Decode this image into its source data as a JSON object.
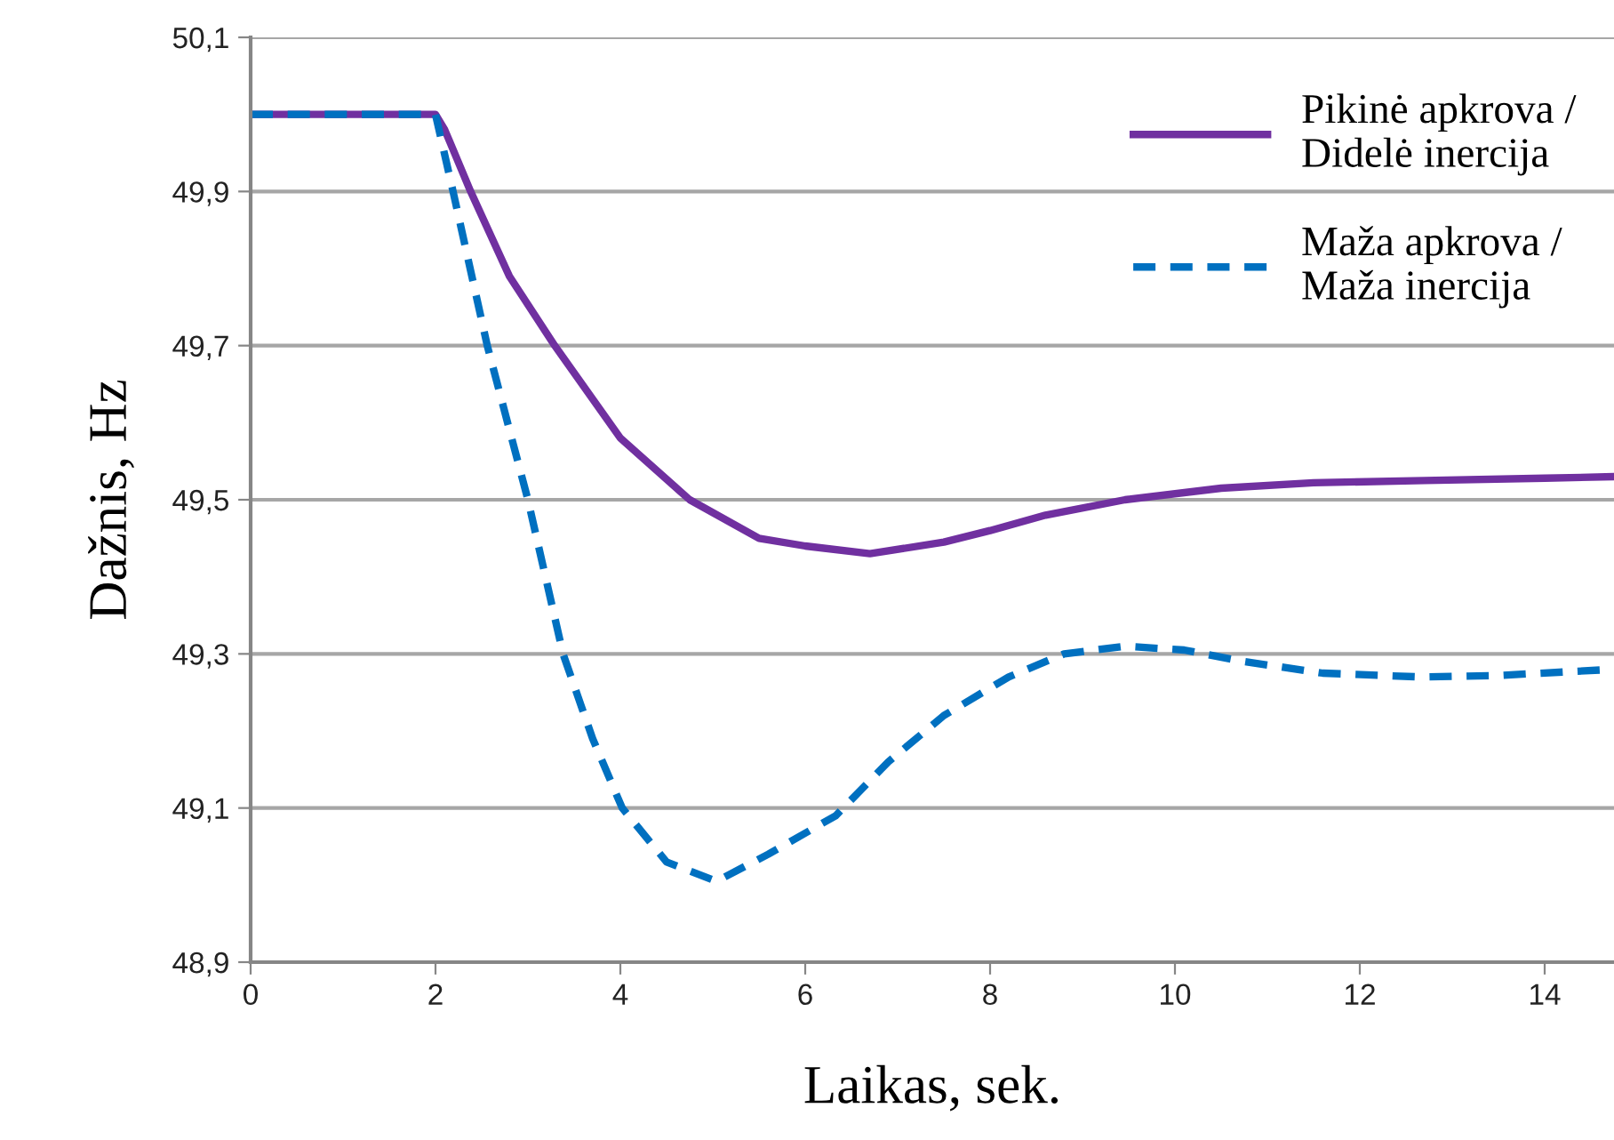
{
  "chart_data": {
    "type": "line",
    "xlabel": "Laikas, sek.",
    "ylabel": "Dažnis, Hz",
    "xlim": [
      0,
      14.75
    ],
    "xticks": [
      0,
      2,
      4,
      6,
      8,
      10,
      12,
      14
    ],
    "ylim": [
      48.9,
      50.1
    ],
    "yticks": [
      {
        "value": 48.9,
        "label": "48,9"
      },
      {
        "value": 49.1,
        "label": "49,1"
      },
      {
        "value": 49.3,
        "label": "49,3"
      },
      {
        "value": 49.5,
        "label": "49,5"
      },
      {
        "value": 49.7,
        "label": "49,7"
      },
      {
        "value": 49.9,
        "label": "49,9"
      },
      {
        "value": 50.1,
        "label": "50,1"
      }
    ],
    "grid": "y",
    "legend": "top right",
    "series": [
      {
        "name": "Pikinė apkrova /\nDidelė inercija",
        "color": "#7030a0",
        "line_style": "solid",
        "x": [
          0,
          2,
          2.1,
          2.38,
          2.8,
          3.29,
          4.0,
          4.75,
          5.5,
          6.0,
          6.7,
          7.5,
          8.0,
          8.6,
          9.46,
          10.5,
          11.5,
          12.7,
          14.0,
          14.75
        ],
        "values": [
          50.0,
          50.0,
          49.98,
          49.9,
          49.79,
          49.7,
          49.58,
          49.5,
          49.45,
          49.44,
          49.43,
          49.445,
          49.46,
          49.48,
          49.5,
          49.515,
          49.522,
          49.525,
          49.528,
          49.53
        ]
      },
      {
        "name": "Maža apkrova /\nMaža inercija",
        "color": "#0070c0",
        "line_style": "dashed",
        "x": [
          0,
          2,
          2.19,
          2.56,
          3.0,
          3.38,
          3.7,
          4.02,
          4.5,
          5.04,
          5.6,
          6.33,
          6.9,
          7.5,
          8.2,
          8.8,
          9.46,
          10.1,
          10.75,
          11.6,
          12.67,
          13.5,
          14.75
        ],
        "values": [
          50.0,
          50.0,
          49.9,
          49.7,
          49.5,
          49.3,
          49.19,
          49.1,
          49.03,
          49.005,
          49.04,
          49.09,
          49.16,
          49.22,
          49.27,
          49.3,
          49.31,
          49.305,
          49.29,
          49.275,
          49.27,
          49.272,
          49.28
        ]
      }
    ]
  }
}
